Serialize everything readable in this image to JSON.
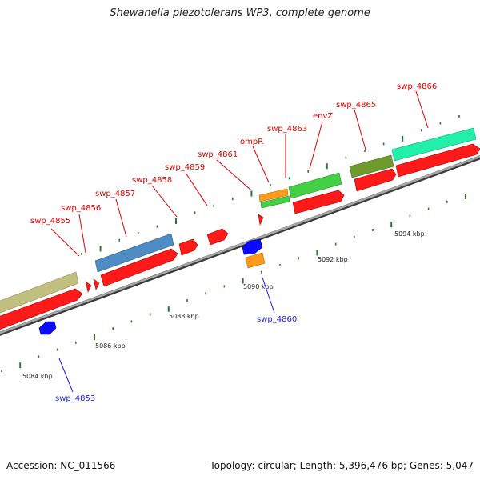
{
  "title": "Shewanella piezotolerans WP3, complete genome",
  "footer": {
    "accession": "Accession: NC_011566",
    "stats": "Topology: circular; Length: 5,396,476 bp; Genes: 5,047"
  },
  "map": {
    "colors": {
      "backbone": "#9a9a9a",
      "forward_gene": "#ff1a1a",
      "reverse_gene": "#0a0aff",
      "tick": "#2a7a2a",
      "label_forward": "#dd0000",
      "label_reverse": "#1a1aee"
    },
    "scale_labels": [
      "5084 kbp",
      "5086 kbp",
      "5088 kbp",
      "5090 kbp",
      "5092 kbp",
      "5094 kbp"
    ],
    "gene_labels": [
      {
        "text": "swp_4855",
        "strand": "forward"
      },
      {
        "text": "swp_4856",
        "strand": "forward"
      },
      {
        "text": "swp_4857",
        "strand": "forward"
      },
      {
        "text": "swp_4858",
        "strand": "forward"
      },
      {
        "text": "swp_4859",
        "strand": "forward"
      },
      {
        "text": "swp_4861",
        "strand": "forward"
      },
      {
        "text": "ompR",
        "strand": "forward"
      },
      {
        "text": "swp_4863",
        "strand": "forward"
      },
      {
        "text": "envZ",
        "strand": "forward"
      },
      {
        "text": "swp_4865",
        "strand": "forward"
      },
      {
        "text": "swp_4866",
        "strand": "forward"
      },
      {
        "text": "swp_4860",
        "strand": "reverse"
      },
      {
        "text": "swp_4853",
        "strand": "reverse"
      }
    ],
    "feature_classes": [
      {
        "name": "cog-khaki",
        "color": "#c2c07e"
      },
      {
        "name": "cog-steel",
        "color": "#4f8bc4"
      },
      {
        "name": "cog-orange",
        "color": "#ff9a1a"
      },
      {
        "name": "cog-green",
        "color": "#44d044"
      },
      {
        "name": "cog-olive",
        "color": "#6e9a2e"
      },
      {
        "name": "cog-aqua",
        "color": "#22f0aa"
      }
    ]
  }
}
